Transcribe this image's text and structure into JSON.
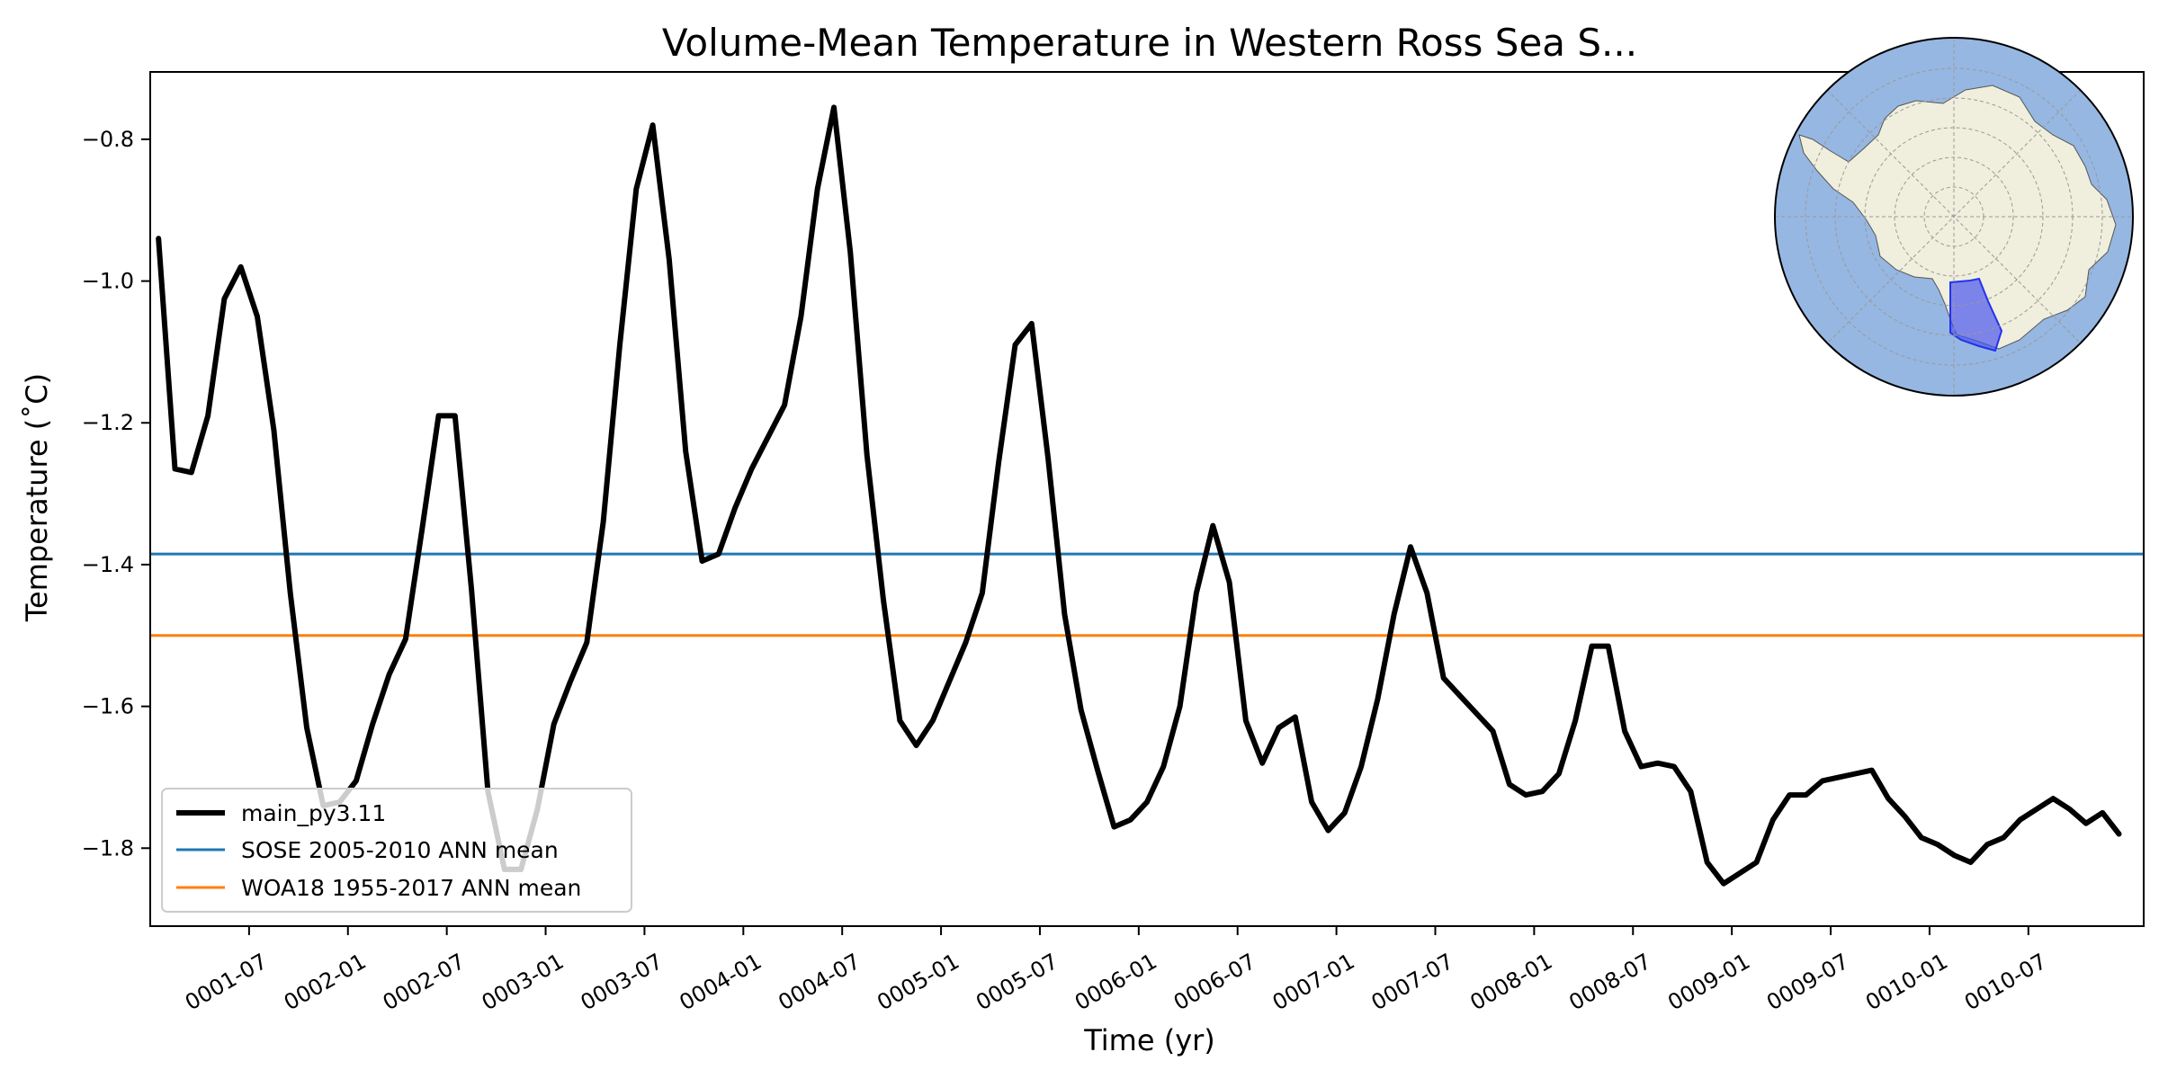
{
  "chart_data": {
    "type": "line",
    "title": "Volume-Mean Temperature in Western Ross Sea S...",
    "xlabel": "Time (yr)",
    "ylabel": "Temperature ($^\\circ$C)",
    "ylabel_display": "Temperature (˚C)",
    "xlim": [
      "0001-01-01",
      "0010-12-31"
    ],
    "ylim": [
      -1.91,
      -0.705
    ],
    "x_ticks": [
      "0001-07",
      "0002-01",
      "0002-07",
      "0003-01",
      "0003-07",
      "0004-01",
      "0004-07",
      "0005-01",
      "0005-07",
      "0006-01",
      "0006-07",
      "0007-01",
      "0007-07",
      "0008-01",
      "0008-07",
      "0009-01",
      "0009-07",
      "0010-01",
      "0010-07"
    ],
    "y_ticks": [
      "-0.8",
      "-1.0",
      "-1.2",
      "-1.4",
      "-1.6",
      "-1.8"
    ],
    "grid": false,
    "legend_position": "lower-left",
    "series": [
      {
        "name": "main_py3.11",
        "color": "#000000",
        "x_start_month": "0001-01",
        "frequency": "monthly",
        "values": [
          -0.94,
          -1.265,
          -1.27,
          -1.19,
          -1.025,
          -0.98,
          -1.05,
          -1.21,
          -1.44,
          -1.63,
          -1.74,
          -1.735,
          -1.705,
          -1.625,
          -1.555,
          -1.505,
          -1.35,
          -1.19,
          -1.19,
          -1.435,
          -1.72,
          -1.83,
          -1.83,
          -1.745,
          -1.625,
          -1.565,
          -1.51,
          -1.34,
          -1.09,
          -0.87,
          -0.78,
          -0.97,
          -1.24,
          -1.395,
          -1.385,
          -1.32,
          -1.265,
          -1.22,
          -1.175,
          -1.05,
          -0.87,
          -0.755,
          -0.96,
          -1.245,
          -1.45,
          -1.62,
          -1.655,
          -1.62,
          -1.565,
          -1.51,
          -1.44,
          -1.255,
          -1.09,
          -1.06,
          -1.25,
          -1.47,
          -1.605,
          -1.69,
          -1.77,
          -1.76,
          -1.735,
          -1.685,
          -1.6,
          -1.44,
          -1.345,
          -1.425,
          -1.62,
          -1.68,
          -1.63,
          -1.615,
          -1.735,
          -1.775,
          -1.75,
          -1.685,
          -1.59,
          -1.47,
          -1.375,
          -1.44,
          -1.56,
          -1.585,
          -1.61,
          -1.635,
          -1.71,
          -1.725,
          -1.72,
          -1.695,
          -1.62,
          -1.515,
          -1.515,
          -1.635,
          -1.685,
          -1.68,
          -1.685,
          -1.72,
          -1.82,
          -1.85,
          -1.835,
          -1.82,
          -1.76,
          -1.725,
          -1.725,
          -1.705,
          -1.7,
          -1.695,
          -1.69,
          -1.73,
          -1.755,
          -1.785,
          -1.795,
          -1.81,
          -1.82,
          -1.795,
          -1.785,
          -1.76,
          -1.745,
          -1.73,
          -1.745,
          -1.765,
          -1.75,
          -1.78
        ]
      },
      {
        "name": "SOSE 2005-2010 ANN mean",
        "color": "#1f77b4",
        "constant": -1.385
      },
      {
        "name": "WOA18 1955-2017 ANN mean",
        "color": "#ff7f0e",
        "constant": -1.5
      }
    ],
    "inset_map": {
      "projection": "south-polar-stereographic",
      "ocean_color": "#96b7e2",
      "land_color": "#f0eedc",
      "region_color": "#4a55ee",
      "description_icon": "antarctica-map-icon"
    }
  }
}
